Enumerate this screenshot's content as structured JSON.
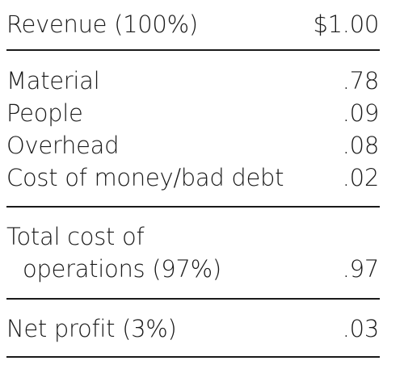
{
  "table": {
    "revenue": {
      "label": "Revenue (100%)",
      "value": "$1.00"
    },
    "material": {
      "label": "Material",
      "value": ".78"
    },
    "people": {
      "label": "People",
      "value": ".09"
    },
    "overhead": {
      "label": "Overhead",
      "value": ".08"
    },
    "cost_of_money": {
      "label": "Cost of money/bad debt",
      "value": ".02"
    },
    "total_cost": {
      "label_line1": "Total cost of",
      "label_line2": "operations (97%)",
      "value": ".97"
    },
    "net_profit": {
      "label": "Net profit (3%)",
      "value": ".03"
    }
  }
}
